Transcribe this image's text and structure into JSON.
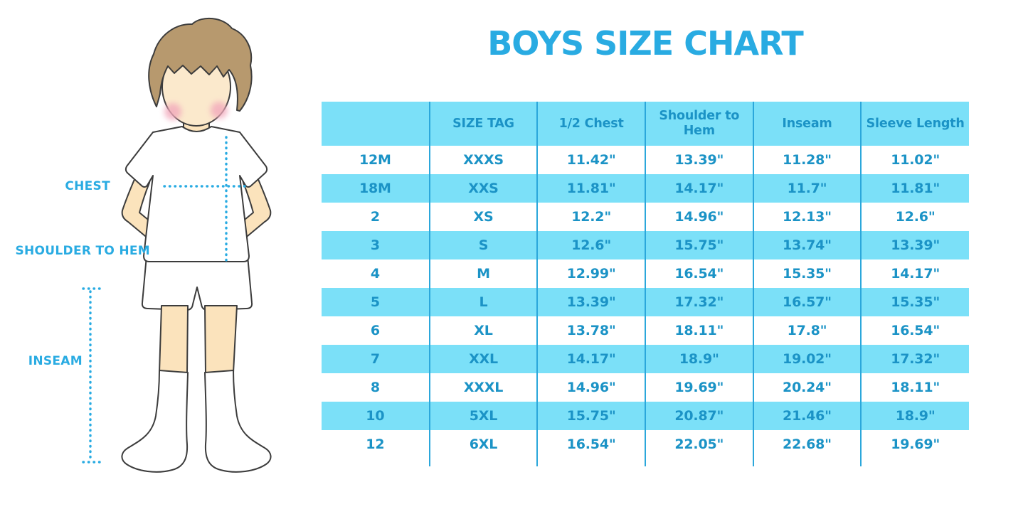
{
  "title": "BOYS SIZE CHART",
  "figure": {
    "chest_label": "CHEST",
    "shoulder_to_hem_label": "SHOULDER TO HEM",
    "inseam_label": "INSEAM"
  },
  "colors": {
    "accent_blue": "#29ABE2",
    "band_blue": "#7BE0F8",
    "table_text_blue": "#1B93C6",
    "separator_blue": "#2BA7DB",
    "hair_brown": "#B7996E",
    "skin": "#FBE3BC",
    "cheek_pink": "#F2A9BC",
    "outline": "#3C3C3C"
  },
  "chart_data": {
    "type": "table",
    "title": "BOYS SIZE CHART",
    "columns": [
      "",
      "SIZE TAG",
      "1/2 Chest",
      "Shoulder to Hem",
      "Inseam",
      "Sleeve Length"
    ],
    "rows": [
      [
        "12M",
        "XXXS",
        "11.42\"",
        "13.39\"",
        "11.28\"",
        "11.02\""
      ],
      [
        "18M",
        "XXS",
        "11.81\"",
        "14.17\"",
        "11.7\"",
        "11.81\""
      ],
      [
        "2",
        "XS",
        "12.2\"",
        "14.96\"",
        "12.13\"",
        "12.6\""
      ],
      [
        "3",
        "S",
        "12.6\"",
        "15.75\"",
        "13.74\"",
        "13.39\""
      ],
      [
        "4",
        "M",
        "12.99\"",
        "16.54\"",
        "15.35\"",
        "14.17\""
      ],
      [
        "5",
        "L",
        "13.39\"",
        "17.32\"",
        "16.57\"",
        "15.35\""
      ],
      [
        "6",
        "XL",
        "13.78\"",
        "18.11\"",
        "17.8\"",
        "16.54\""
      ],
      [
        "7",
        "XXL",
        "14.17\"",
        "18.9\"",
        "19.02\"",
        "17.32\""
      ],
      [
        "8",
        "XXXL",
        "14.96\"",
        "19.69\"",
        "20.24\"",
        "18.11\""
      ],
      [
        "10",
        "5XL",
        "15.75\"",
        "20.87\"",
        "21.46\"",
        "18.9\""
      ],
      [
        "12",
        "6XL",
        "16.54\"",
        "22.05\"",
        "22.68\"",
        "19.69\""
      ]
    ]
  }
}
